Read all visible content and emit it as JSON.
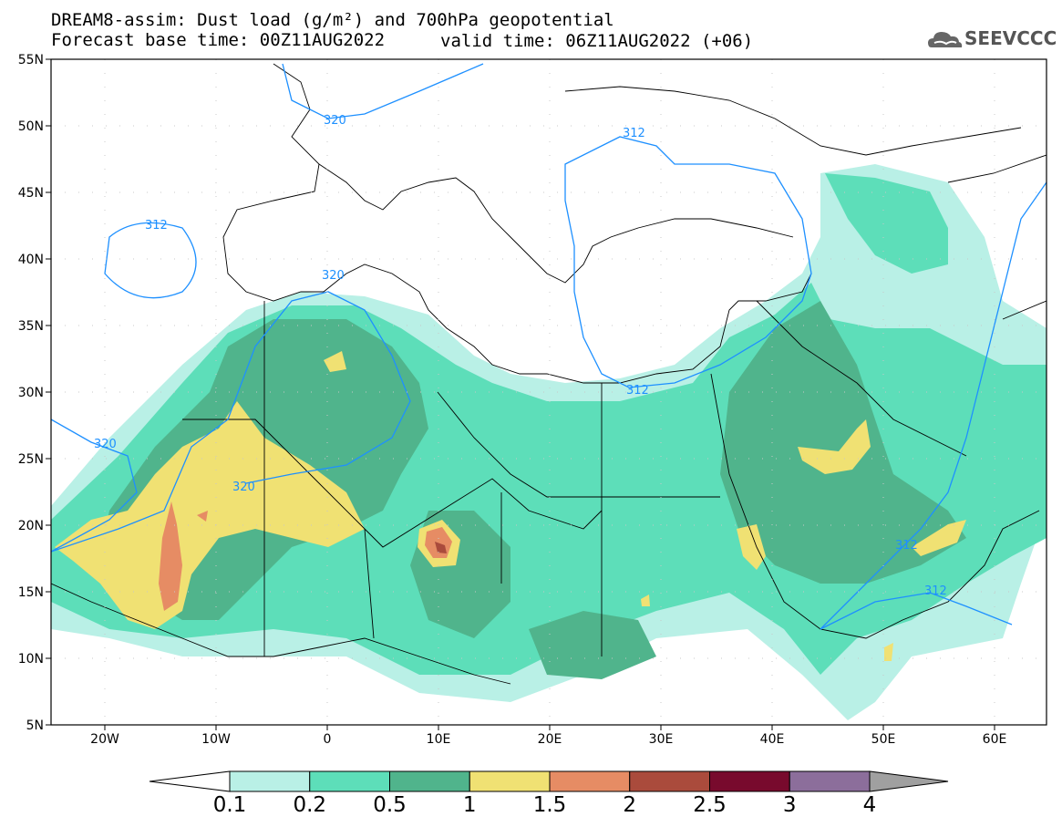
{
  "header": {
    "title_line1": "DREAM8-assim: Dust load (g/m²) and 700hPa geopotential",
    "title_line2_left": "Forecast base time: 00Z11AUG2022",
    "title_line2_right": "valid time: 06Z11AUG2022 (+06)",
    "logo_text": "SEEVCCC"
  },
  "map": {
    "lat_labels": [
      "55N",
      "50N",
      "45N",
      "40N",
      "35N",
      "30N",
      "25N",
      "20N",
      "15N",
      "10N",
      "5N"
    ],
    "lon_labels": [
      "20W",
      "10W",
      "0",
      "10E",
      "20E",
      "30E",
      "40E",
      "50E",
      "60E"
    ],
    "contour_labels": [
      "320",
      "312",
      "312",
      "320",
      "320",
      "320",
      "312",
      "312",
      "312"
    ],
    "colors": {
      "c1": "#b9f0e6",
      "c2": "#5ddeb9",
      "c3": "#50b48c",
      "c4": "#f0e173",
      "c5": "#e68c64",
      "c6": "#aa4b3c",
      "c7": "#780a2d",
      "c8": "#8c6e9b",
      "c9": "#a0a0a0",
      "contour": "#1e90ff"
    }
  },
  "colorbar": {
    "labels": [
      "0.1",
      "0.2",
      "0.5",
      "1",
      "1.5",
      "2",
      "2.5",
      "3",
      "4"
    ]
  }
}
